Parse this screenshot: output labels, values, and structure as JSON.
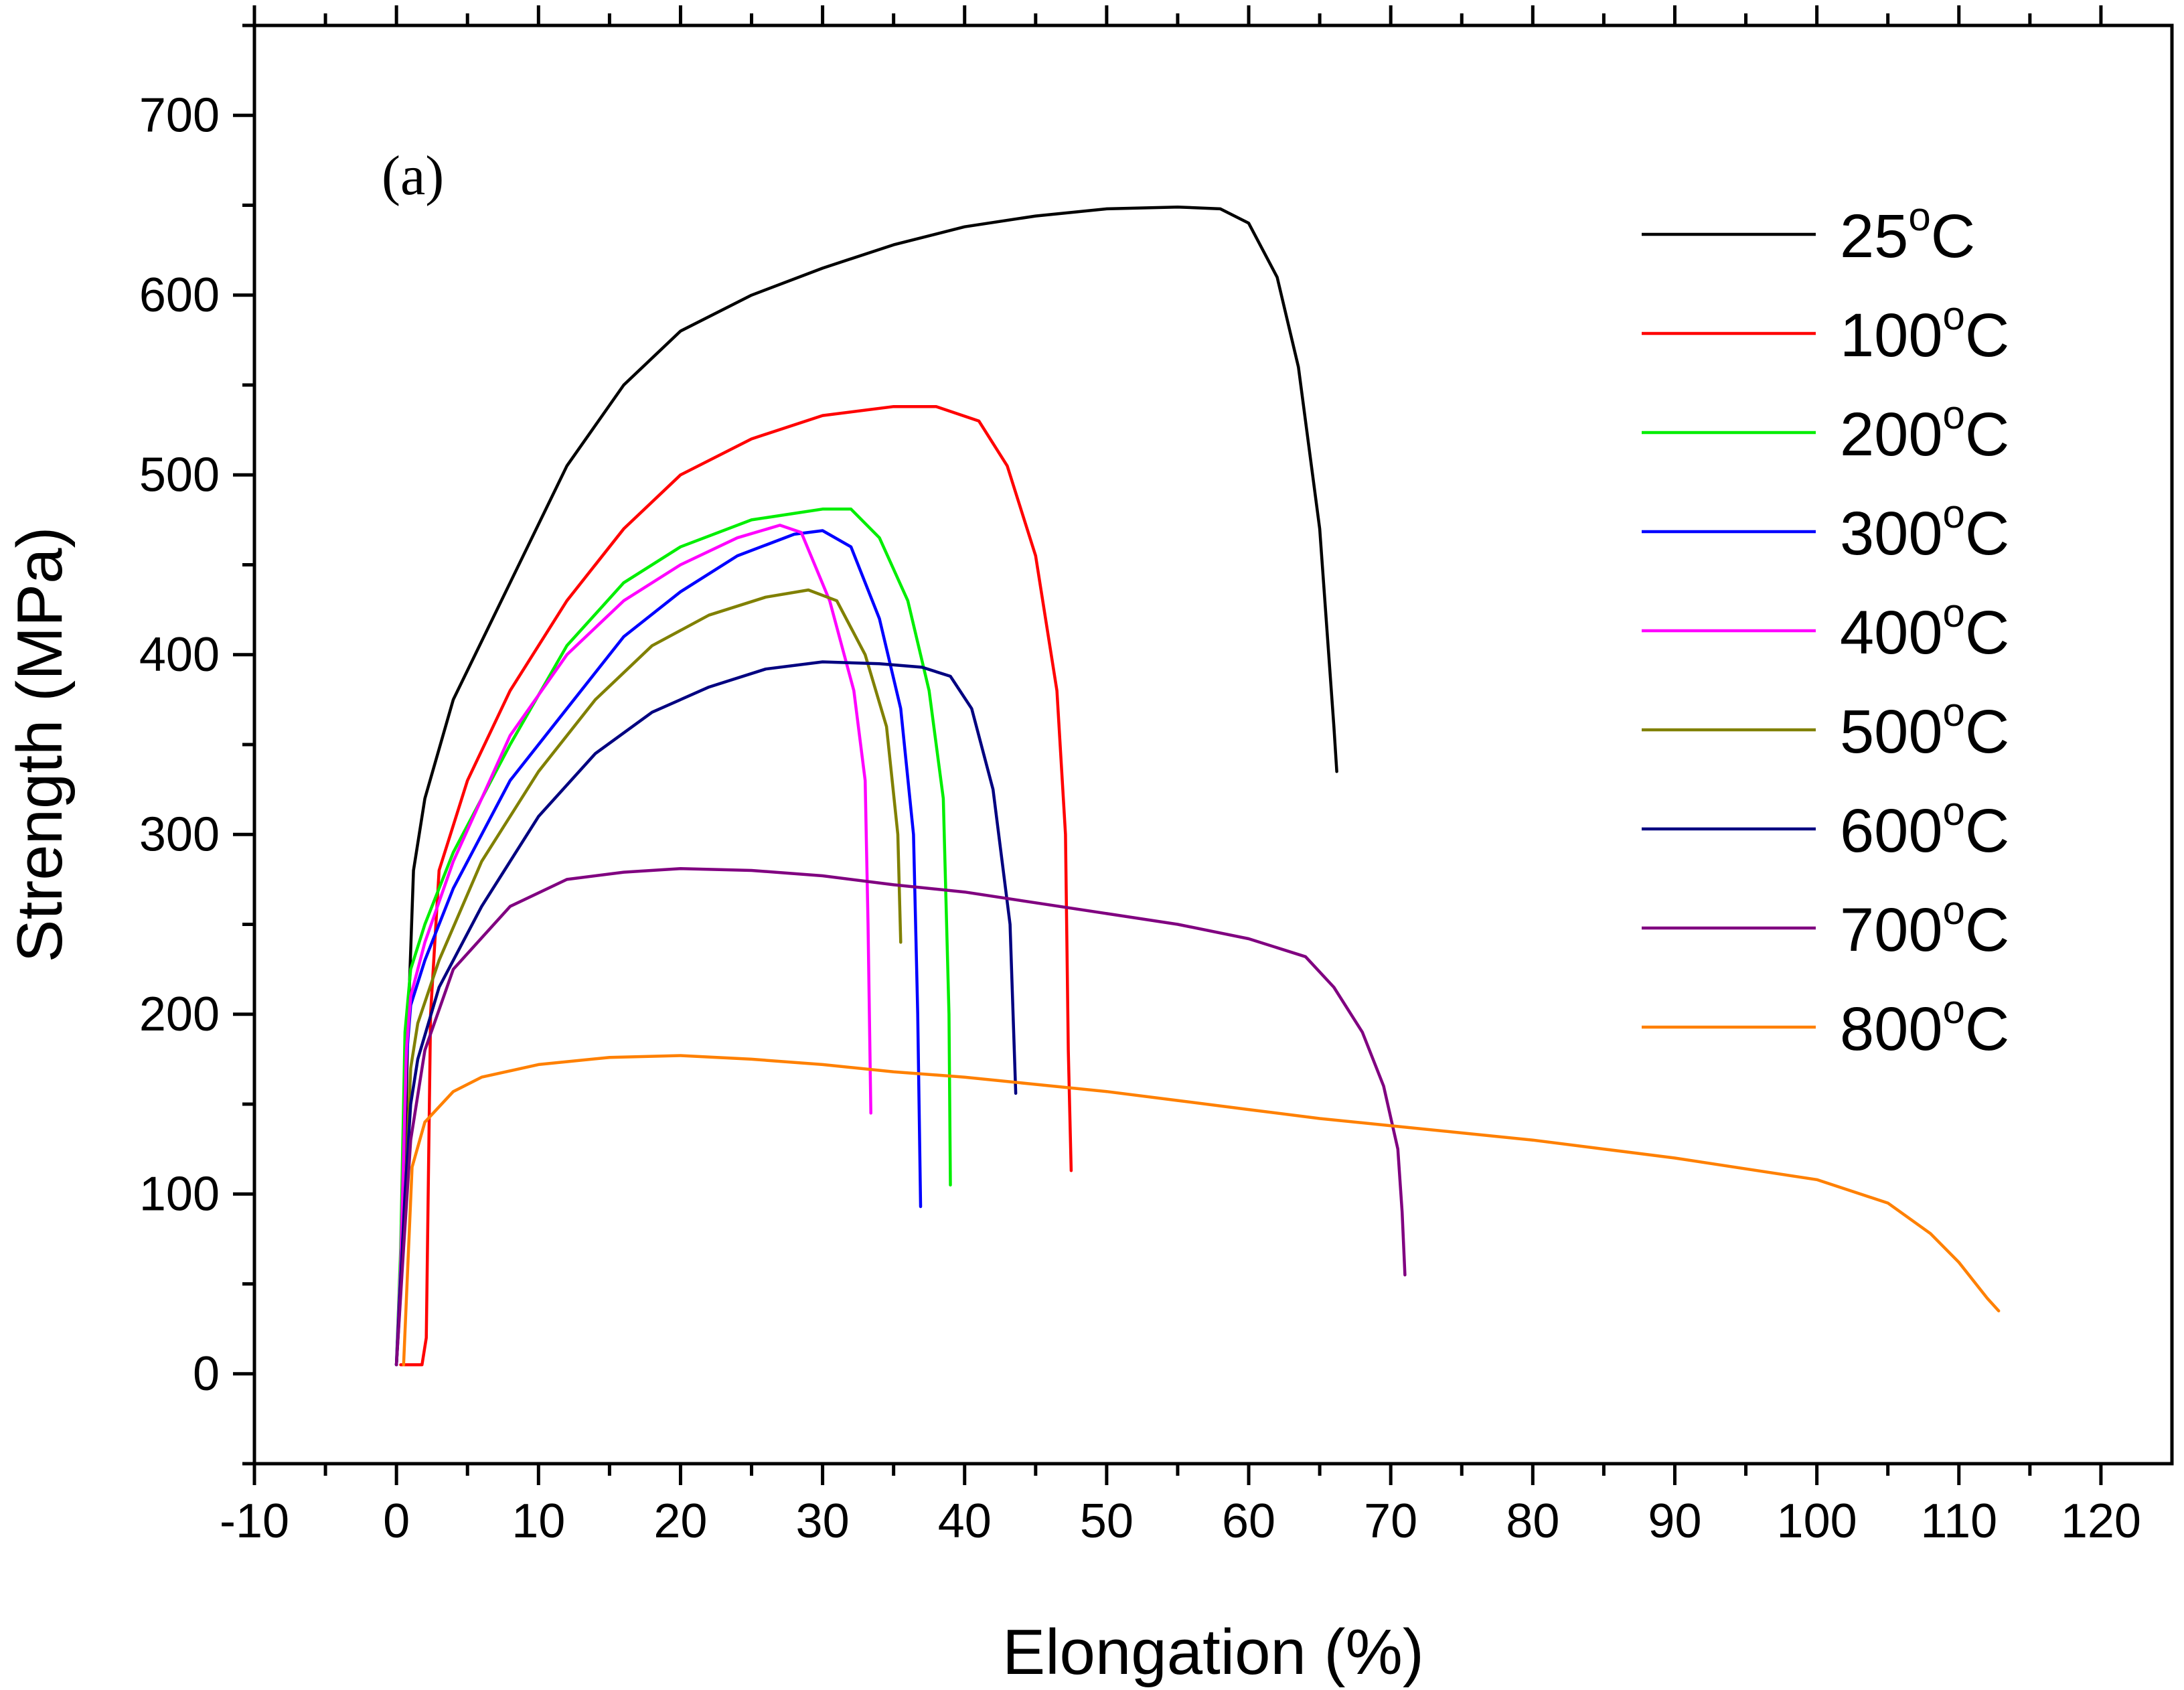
{
  "chart_data": {
    "type": "line",
    "title": "",
    "panel_label": "(a)",
    "xlabel": "Elongation (%)",
    "ylabel": "Strength (MPa)",
    "xlim": [
      -10,
      125
    ],
    "ylim": [
      -50,
      750
    ],
    "x_ticks": [
      -10,
      0,
      10,
      20,
      30,
      40,
      50,
      60,
      70,
      80,
      90,
      100,
      110,
      120
    ],
    "x_tick_labels": [
      "-10",
      "0",
      "10",
      "20",
      "30",
      "40",
      "50",
      "60",
      "70",
      "80",
      "90",
      "100",
      "110",
      "120"
    ],
    "y_ticks": [
      0,
      100,
      200,
      300,
      400,
      500,
      600,
      700
    ],
    "y_tick_labels": [
      "0",
      "100",
      "200",
      "300",
      "400",
      "500",
      "600",
      "700"
    ],
    "grid": false,
    "legend_position": "top-right",
    "series": [
      {
        "name": "25",
        "unit": "°C",
        "color": "#000000",
        "points": [
          [
            0,
            5
          ],
          [
            0.4,
            60
          ],
          [
            0.8,
            190
          ],
          [
            1.2,
            280
          ],
          [
            2,
            320
          ],
          [
            4,
            375
          ],
          [
            8,
            440
          ],
          [
            12,
            505
          ],
          [
            16,
            550
          ],
          [
            20,
            580
          ],
          [
            25,
            600
          ],
          [
            30,
            615
          ],
          [
            35,
            628
          ],
          [
            40,
            638
          ],
          [
            45,
            644
          ],
          [
            50,
            648
          ],
          [
            55,
            649
          ],
          [
            58,
            648
          ],
          [
            60,
            640
          ],
          [
            62,
            610
          ],
          [
            63.5,
            560
          ],
          [
            65,
            470
          ],
          [
            66,
            360
          ],
          [
            66.2,
            335
          ]
        ]
      },
      {
        "name": "100",
        "unit": "°C",
        "color": "#ff0000",
        "points": [
          [
            0.3,
            5
          ],
          [
            1.8,
            5
          ],
          [
            2.1,
            20
          ],
          [
            2.4,
            200
          ],
          [
            3,
            280
          ],
          [
            5,
            330
          ],
          [
            8,
            380
          ],
          [
            12,
            430
          ],
          [
            16,
            470
          ],
          [
            20,
            500
          ],
          [
            25,
            520
          ],
          [
            30,
            533
          ],
          [
            35,
            538
          ],
          [
            38,
            538
          ],
          [
            41,
            530
          ],
          [
            43,
            505
          ],
          [
            45,
            455
          ],
          [
            46.5,
            380
          ],
          [
            47.1,
            300
          ],
          [
            47.3,
            180
          ],
          [
            47.5,
            113
          ]
        ]
      },
      {
        "name": "200",
        "unit": "°C",
        "color": "#00ee00",
        "points": [
          [
            0,
            5
          ],
          [
            0.3,
            70
          ],
          [
            0.6,
            190
          ],
          [
            1,
            225
          ],
          [
            2,
            250
          ],
          [
            4,
            290
          ],
          [
            8,
            350
          ],
          [
            12,
            405
          ],
          [
            16,
            440
          ],
          [
            20,
            460
          ],
          [
            25,
            475
          ],
          [
            30,
            481
          ],
          [
            32,
            481
          ],
          [
            34,
            465
          ],
          [
            36,
            430
          ],
          [
            37.5,
            380
          ],
          [
            38.5,
            320
          ],
          [
            38.9,
            200
          ],
          [
            39,
            105
          ]
        ]
      },
      {
        "name": "300",
        "unit": "°C",
        "color": "#0000ff",
        "points": [
          [
            0,
            5
          ],
          [
            0.3,
            60
          ],
          [
            0.7,
            175
          ],
          [
            1,
            205
          ],
          [
            2,
            230
          ],
          [
            4,
            270
          ],
          [
            8,
            330
          ],
          [
            12,
            370
          ],
          [
            16,
            410
          ],
          [
            20,
            435
          ],
          [
            24,
            455
          ],
          [
            28,
            467
          ],
          [
            30,
            469
          ],
          [
            32,
            460
          ],
          [
            34,
            420
          ],
          [
            35.5,
            370
          ],
          [
            36.4,
            300
          ],
          [
            36.7,
            200
          ],
          [
            36.9,
            93
          ]
        ]
      },
      {
        "name": "400",
        "unit": "°C",
        "color": "#ff00ff",
        "points": [
          [
            0,
            5
          ],
          [
            0.3,
            60
          ],
          [
            0.7,
            180
          ],
          [
            1,
            210
          ],
          [
            2,
            240
          ],
          [
            4,
            285
          ],
          [
            8,
            355
          ],
          [
            12,
            400
          ],
          [
            16,
            430
          ],
          [
            20,
            450
          ],
          [
            24,
            465
          ],
          [
            27,
            472
          ],
          [
            28.5,
            468
          ],
          [
            30.5,
            430
          ],
          [
            32.2,
            380
          ],
          [
            33,
            330
          ],
          [
            33.2,
            250
          ],
          [
            33.4,
            145
          ]
        ]
      },
      {
        "name": "500",
        "unit": "°C",
        "color": "#808000",
        "points": [
          [
            0,
            5
          ],
          [
            0.5,
            80
          ],
          [
            1,
            170
          ],
          [
            1.5,
            195
          ],
          [
            3,
            230
          ],
          [
            6,
            285
          ],
          [
            10,
            335
          ],
          [
            14,
            375
          ],
          [
            18,
            405
          ],
          [
            22,
            422
          ],
          [
            26,
            432
          ],
          [
            29,
            436
          ],
          [
            31,
            430
          ],
          [
            33,
            400
          ],
          [
            34.5,
            360
          ],
          [
            35.3,
            300
          ],
          [
            35.5,
            240
          ]
        ]
      },
      {
        "name": "600",
        "unit": "°C",
        "color": "#000080",
        "points": [
          [
            0,
            5
          ],
          [
            0.6,
            100
          ],
          [
            1,
            150
          ],
          [
            1.5,
            175
          ],
          [
            3,
            215
          ],
          [
            6,
            260
          ],
          [
            10,
            310
          ],
          [
            14,
            345
          ],
          [
            18,
            368
          ],
          [
            22,
            382
          ],
          [
            26,
            392
          ],
          [
            30,
            396
          ],
          [
            34,
            395
          ],
          [
            37,
            393
          ],
          [
            39,
            388
          ],
          [
            40.5,
            370
          ],
          [
            42,
            325
          ],
          [
            43.2,
            250
          ],
          [
            43.6,
            156
          ]
        ]
      },
      {
        "name": "700",
        "unit": "°C",
        "color": "#800080",
        "points": [
          [
            0,
            5
          ],
          [
            0.5,
            70
          ],
          [
            1,
            130
          ],
          [
            2,
            180
          ],
          [
            4,
            225
          ],
          [
            8,
            260
          ],
          [
            12,
            275
          ],
          [
            16,
            279
          ],
          [
            20,
            281
          ],
          [
            25,
            280
          ],
          [
            30,
            277
          ],
          [
            35,
            272
          ],
          [
            40,
            268
          ],
          [
            45,
            262
          ],
          [
            50,
            256
          ],
          [
            55,
            250
          ],
          [
            60,
            242
          ],
          [
            64,
            232
          ],
          [
            66,
            215
          ],
          [
            68,
            190
          ],
          [
            69.5,
            160
          ],
          [
            70.5,
            125
          ],
          [
            70.8,
            90
          ],
          [
            71,
            55
          ]
        ]
      },
      {
        "name": "800",
        "unit": "°C",
        "color": "#ff8000",
        "points": [
          [
            0.5,
            5
          ],
          [
            0.8,
            60
          ],
          [
            1.1,
            115
          ],
          [
            2,
            140
          ],
          [
            4,
            157
          ],
          [
            6,
            165
          ],
          [
            10,
            172
          ],
          [
            15,
            176
          ],
          [
            20,
            177
          ],
          [
            25,
            175
          ],
          [
            30,
            172
          ],
          [
            35,
            168
          ],
          [
            40,
            165
          ],
          [
            45,
            161
          ],
          [
            50,
            157
          ],
          [
            55,
            152
          ],
          [
            60,
            147
          ],
          [
            65,
            142
          ],
          [
            70,
            138
          ],
          [
            75,
            134
          ],
          [
            80,
            130
          ],
          [
            85,
            125
          ],
          [
            90,
            120
          ],
          [
            95,
            114
          ],
          [
            100,
            108
          ],
          [
            105,
            95
          ],
          [
            108,
            78
          ],
          [
            110,
            62
          ],
          [
            112,
            42
          ],
          [
            112.8,
            35
          ]
        ]
      }
    ]
  }
}
